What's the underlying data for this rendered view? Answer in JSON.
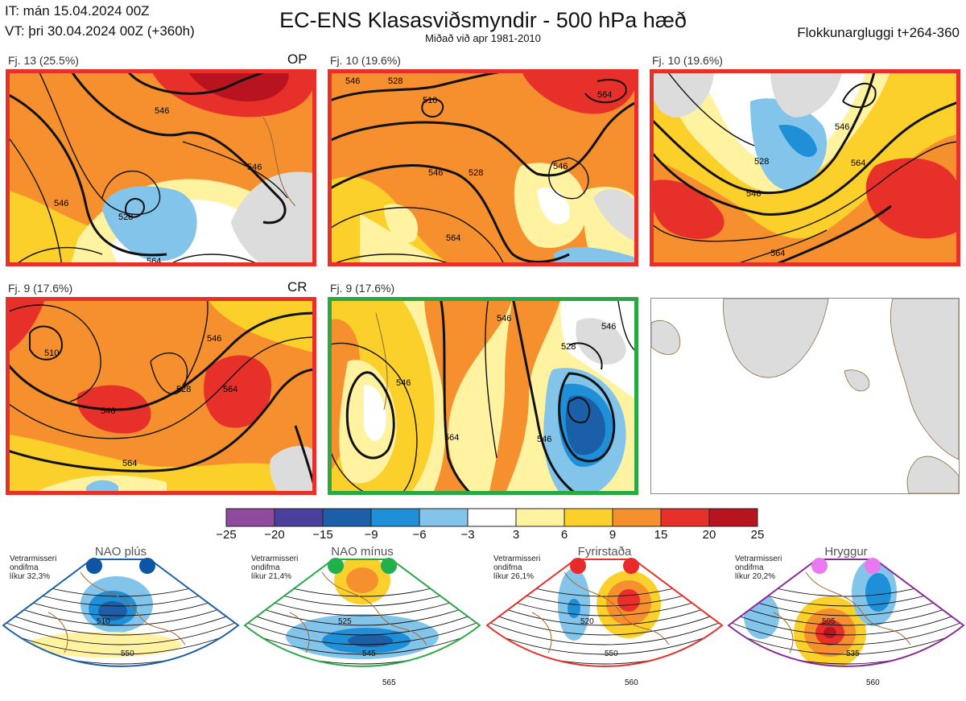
{
  "header": {
    "it_line": "IT: mán 15.04.2024 00Z",
    "vt_line": "VT: þri 30.04.2024 00Z  (+360h)",
    "title": "EC-ENS Klasasviðsmyndir - 500 hPa hæð",
    "subtitle": "Miðað við apr 1981-2010",
    "window": "Flokkunargluggi t+264-360"
  },
  "clusters": [
    {
      "label": "Fj. 13 (25.5%)",
      "tag": "OP",
      "frame": "#e8302a",
      "members": 13,
      "percent": 25.5,
      "contours": [
        "528",
        "546",
        "546",
        "564",
        "546",
        "546"
      ]
    },
    {
      "label": "Fj. 10 (19.6%)",
      "tag": "",
      "frame": "#e8302a",
      "members": 10,
      "percent": 19.6,
      "contours": [
        "546",
        "528",
        "510",
        "528",
        "546",
        "564",
        "546",
        "564",
        "546"
      ]
    },
    {
      "label": "Fj. 10 (19.6%)",
      "tag": "",
      "frame": "#e8302a",
      "members": 10,
      "percent": 19.6,
      "contours": [
        "528",
        "546",
        "546",
        "564",
        "564"
      ]
    },
    {
      "label": "Fj. 9 (17.6%)",
      "tag": "CR",
      "frame": "#e8302a",
      "members": 9,
      "percent": 17.6,
      "contours": [
        "510",
        "546",
        "528",
        "546",
        "564",
        "564"
      ]
    },
    {
      "label": "Fj. 9 (17.6%)",
      "tag": "",
      "frame": "#2aa845",
      "members": 9,
      "percent": 17.6,
      "contours": [
        "546",
        "528",
        "546",
        "564",
        "546",
        "546"
      ]
    }
  ],
  "chart_data": {
    "type": "heatmap",
    "title": "EC-ENS Klasasviðsmyndir - 500 hPa hæð",
    "variable": "500 hPa height anomaly (dam) with height contours",
    "colorbar": {
      "ticks": [
        "−25",
        "−20",
        "−15",
        "−9",
        "−6",
        "−3",
        "3",
        "6",
        "9",
        "15",
        "20",
        "25"
      ],
      "tick_values": [
        -25,
        -20,
        -15,
        -9,
        -6,
        -3,
        3,
        6,
        9,
        15,
        20,
        25
      ],
      "colors": [
        "#8e4b9e",
        "#4b3f9e",
        "#1b5fa8",
        "#1f8fd8",
        "#82c4ea",
        "#ffffff",
        "#fff2a0",
        "#fcd02a",
        "#f6902f",
        "#e8302a",
        "#b81420"
      ]
    },
    "clusters": [
      {
        "name": "Fj. 13",
        "members": 13,
        "percent": 25.5
      },
      {
        "name": "Fj. 10",
        "members": 10,
        "percent": 19.6
      },
      {
        "name": "Fj. 10",
        "members": 10,
        "percent": 19.6
      },
      {
        "name": "Fj. 9",
        "members": 9,
        "percent": 17.6
      },
      {
        "name": "Fj. 9",
        "members": 9,
        "percent": 17.6
      }
    ],
    "regimes": [
      {
        "name": "NAO plús",
        "likelihood_pct": 32.3,
        "dots": 2
      },
      {
        "name": "NAO mínus",
        "likelihood_pct": 21.4,
        "dots": 2
      },
      {
        "name": "Fyrirstaða",
        "likelihood_pct": 26.1,
        "dots": 2
      },
      {
        "name": "Hryggur",
        "likelihood_pct": 20.2,
        "dots": 2
      }
    ]
  },
  "regimes": [
    {
      "name": "NAO plús",
      "line1": "Vetrarmisseri",
      "line2": "ondifma",
      "line3": "líkur 32,3%",
      "color": "#1b5fa8",
      "dot": "#0d56a6",
      "contours": [
        "510",
        "550"
      ]
    },
    {
      "name": "NAO mínus",
      "line1": "Vetrarmisseri",
      "line2": "ondifma",
      "line3": "líkur 21,4%",
      "color": "#2aa845",
      "dot": "#22b04a",
      "contours": [
        "525",
        "545",
        "565"
      ]
    },
    {
      "name": "Fyrirstaða",
      "line1": "Vetrarmisseri",
      "line2": "ondifma",
      "line3": "líkur 26,1%",
      "color": "#e8302a",
      "dot": "#e82a2a",
      "contours": [
        "520",
        "550",
        "560"
      ]
    },
    {
      "name": "Hryggur",
      "line1": "Vetrarmisseri",
      "line2": "ondifma",
      "line3": "líkur 20,2%",
      "color": "#8a2a9a",
      "dot": "#e879ee",
      "contours": [
        "505",
        "535",
        "560"
      ]
    }
  ]
}
